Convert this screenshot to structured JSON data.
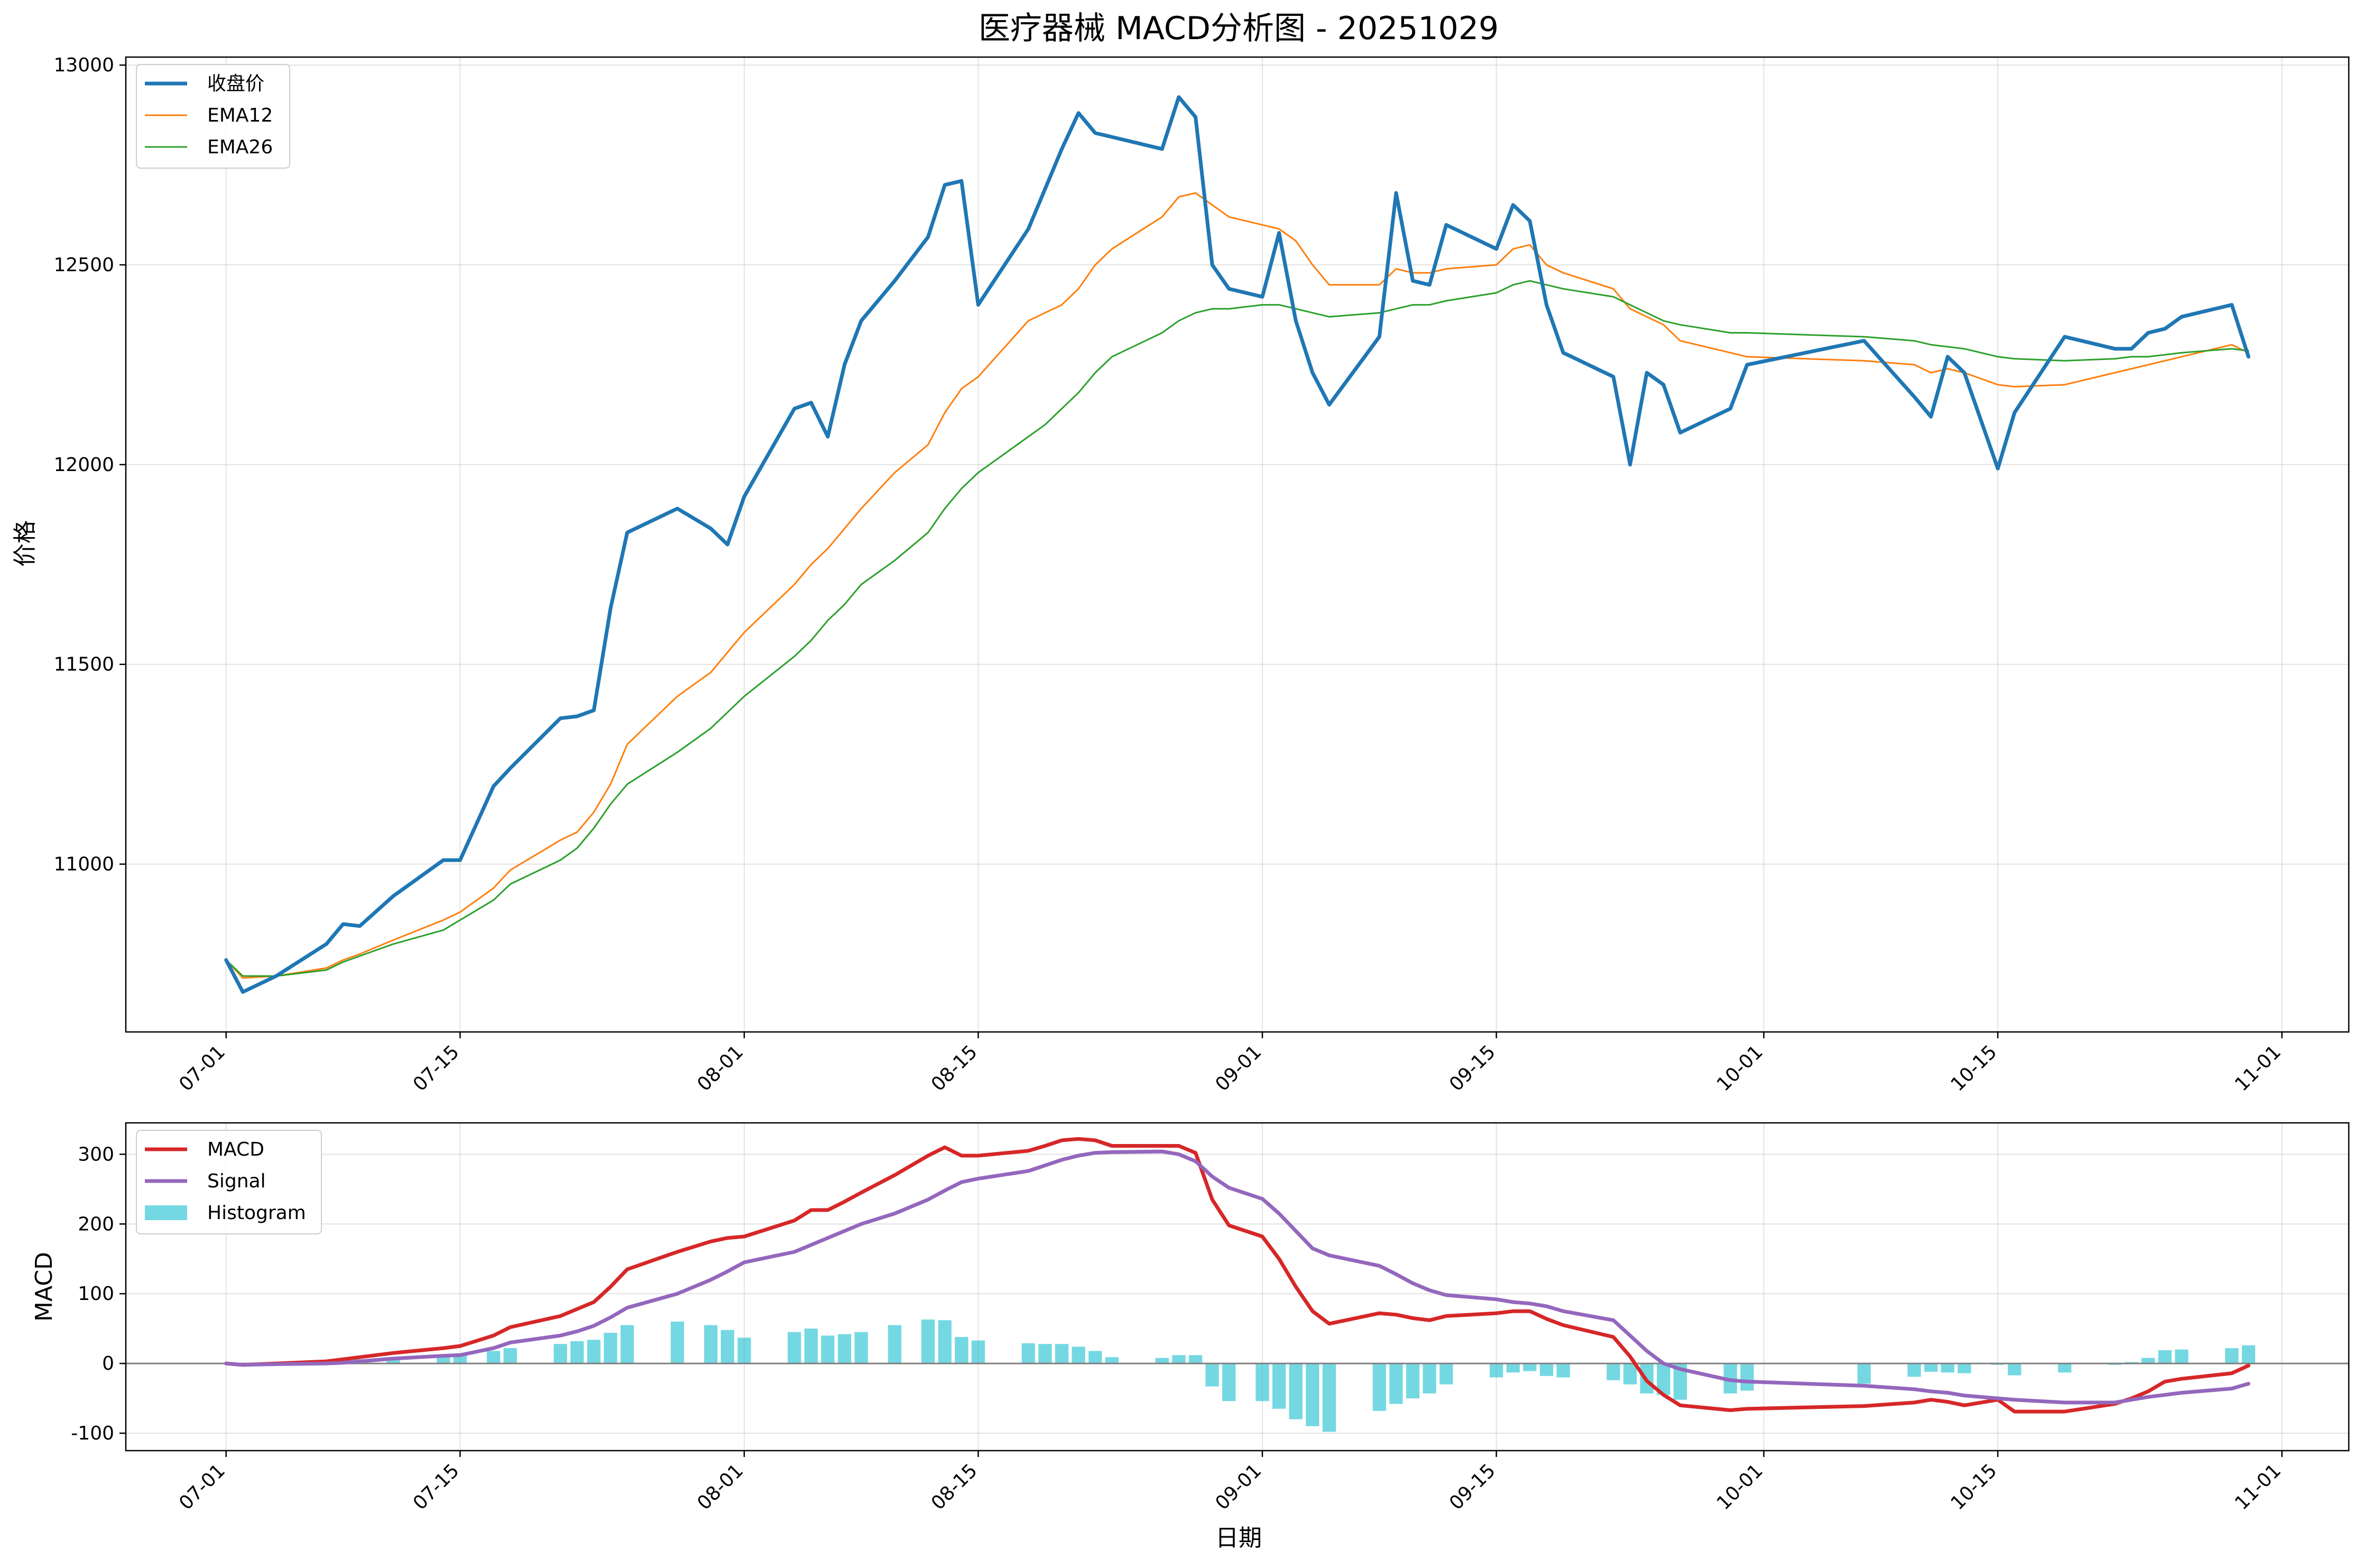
{
  "chart_data": [
    {
      "type": "line",
      "title": "医疗器械 MACD分析图 - 20251029",
      "ylabel": "价格",
      "ylim": [
        10580,
        13020
      ],
      "y_ticks": [
        11000,
        11500,
        12000,
        12500,
        13000
      ],
      "x_ticks": [
        "07-01",
        "07-15",
        "08-01",
        "08-15",
        "09-01",
        "09-15",
        "10-01",
        "10-15",
        "11-01"
      ],
      "x_tick_days": [
        0,
        14,
        31,
        45,
        62,
        76,
        92,
        106,
        123
      ],
      "xlim": [
        -6,
        127
      ],
      "grid": true,
      "legend_placement": "upper-left",
      "series": [
        {
          "name": "收盘价",
          "color": "#1f77b4",
          "x": [
            0,
            1,
            3,
            6,
            7,
            8,
            10,
            13,
            14,
            16,
            17,
            20,
            21,
            22,
            23,
            24,
            27,
            29,
            30,
            31,
            34,
            35,
            36,
            37,
            38,
            40,
            42,
            43,
            44,
            45,
            48,
            49,
            50,
            51,
            52,
            53,
            56,
            57,
            58,
            59,
            60,
            62,
            63,
            64,
            65,
            66,
            69,
            70,
            71,
            72,
            73,
            76,
            77,
            78,
            79,
            80,
            83,
            84,
            85,
            86,
            87,
            90,
            91,
            98,
            101,
            102,
            103,
            104,
            106,
            107,
            110,
            113,
            114,
            115,
            116,
            117,
            120,
            121
          ],
          "y": [
            10760,
            10680,
            10720,
            10800,
            10850,
            10845,
            10920,
            11010,
            11010,
            11195,
            11240,
            11365,
            11370,
            11385,
            11640,
            11830,
            11890,
            11840,
            11800,
            11920,
            12140,
            12155,
            12070,
            12250,
            12360,
            12460,
            12570,
            12700,
            12710,
            12400,
            12590,
            12690,
            12790,
            12880,
            12830,
            12820,
            12790,
            12920,
            12870,
            12500,
            12440,
            12420,
            12580,
            12360,
            12230,
            12150,
            12320,
            12680,
            12460,
            12450,
            12600,
            12540,
            12650,
            12610,
            12400,
            12280,
            12220,
            12000,
            12230,
            12200,
            12080,
            12140,
            12250,
            12310,
            12170,
            12120,
            12270,
            12230,
            11990,
            12130,
            12320,
            12290,
            12290,
            12330,
            12340,
            12370,
            12400,
            12270
          ]
        },
        {
          "name": "EMA12",
          "color": "#ff7f0e",
          "x": [
            0,
            1,
            3,
            6,
            7,
            8,
            10,
            13,
            14,
            16,
            17,
            20,
            21,
            22,
            23,
            24,
            27,
            29,
            30,
            31,
            34,
            35,
            36,
            37,
            38,
            40,
            42,
            43,
            44,
            45,
            48,
            49,
            50,
            51,
            52,
            53,
            56,
            57,
            58,
            59,
            60,
            62,
            63,
            64,
            65,
            66,
            69,
            70,
            71,
            72,
            73,
            76,
            77,
            78,
            79,
            80,
            83,
            84,
            85,
            86,
            87,
            90,
            91,
            98,
            101,
            102,
            103,
            104,
            106,
            107,
            110,
            113,
            114,
            115,
            116,
            117,
            120,
            121
          ],
          "y": [
            10760,
            10715,
            10720,
            10740,
            10760,
            10775,
            10810,
            10860,
            10880,
            10940,
            10985,
            11060,
            11080,
            11130,
            11200,
            11300,
            11420,
            11480,
            11530,
            11580,
            11700,
            11750,
            11790,
            11840,
            11890,
            11980,
            12050,
            12130,
            12190,
            12220,
            12360,
            12380,
            12400,
            12440,
            12500,
            12540,
            12620,
            12670,
            12680,
            12650,
            12620,
            12600,
            12590,
            12560,
            12500,
            12450,
            12450,
            12490,
            12480,
            12480,
            12490,
            12500,
            12540,
            12550,
            12500,
            12480,
            12440,
            12390,
            12370,
            12350,
            12310,
            12280,
            12270,
            12260,
            12250,
            12230,
            12240,
            12230,
            12200,
            12195,
            12200,
            12230,
            12240,
            12250,
            12260,
            12270,
            12300,
            12280
          ]
        },
        {
          "name": "EMA26",
          "color": "#2ca02c",
          "x": [
            0,
            1,
            3,
            6,
            7,
            8,
            10,
            13,
            14,
            16,
            17,
            20,
            21,
            22,
            23,
            24,
            27,
            29,
            30,
            31,
            34,
            35,
            36,
            37,
            38,
            40,
            42,
            43,
            44,
            45,
            48,
            49,
            50,
            51,
            52,
            53,
            56,
            57,
            58,
            59,
            60,
            62,
            63,
            64,
            65,
            66,
            69,
            70,
            71,
            72,
            73,
            76,
            77,
            78,
            79,
            80,
            83,
            84,
            85,
            86,
            87,
            90,
            91,
            98,
            101,
            102,
            103,
            104,
            106,
            107,
            110,
            113,
            114,
            115,
            116,
            117,
            120,
            121
          ],
          "y": [
            10760,
            10720,
            10720,
            10735,
            10755,
            10770,
            10800,
            10835,
            10860,
            10910,
            10950,
            11010,
            11040,
            11090,
            11150,
            11200,
            11280,
            11340,
            11380,
            11420,
            11520,
            11560,
            11610,
            11650,
            11700,
            11760,
            11830,
            11890,
            11940,
            11980,
            12070,
            12100,
            12140,
            12180,
            12230,
            12270,
            12330,
            12360,
            12380,
            12390,
            12390,
            12400,
            12400,
            12390,
            12380,
            12370,
            12380,
            12390,
            12400,
            12400,
            12410,
            12430,
            12450,
            12460,
            12450,
            12440,
            12420,
            12400,
            12380,
            12360,
            12350,
            12330,
            12330,
            12320,
            12310,
            12300,
            12295,
            12290,
            12270,
            12265,
            12260,
            12265,
            12270,
            12270,
            12275,
            12280,
            12290,
            12285
          ]
        }
      ]
    },
    {
      "type": "line",
      "title": "",
      "xlabel": "日期",
      "ylabel": "MACD",
      "ylim": [
        -125,
        345
      ],
      "y_ticks": [
        -100,
        0,
        100,
        200,
        300
      ],
      "x_ticks": [
        "07-01",
        "07-15",
        "08-01",
        "08-15",
        "09-01",
        "09-15",
        "10-01",
        "10-15",
        "11-01"
      ],
      "x_tick_days": [
        0,
        14,
        31,
        45,
        62,
        76,
        92,
        106,
        123
      ],
      "xlim": [
        -6,
        127
      ],
      "grid": true,
      "legend_placement": "upper-left",
      "zero_line": true,
      "series": [
        {
          "name": "MACD",
          "color": "#d62728",
          "x": [
            0,
            1,
            3,
            6,
            7,
            8,
            10,
            13,
            14,
            16,
            17,
            20,
            21,
            22,
            23,
            24,
            27,
            29,
            30,
            31,
            34,
            35,
            36,
            37,
            38,
            40,
            42,
            43,
            44,
            45,
            48,
            49,
            50,
            51,
            52,
            53,
            56,
            57,
            58,
            59,
            60,
            62,
            63,
            64,
            65,
            66,
            69,
            70,
            71,
            72,
            73,
            76,
            77,
            78,
            79,
            80,
            83,
            84,
            85,
            86,
            87,
            90,
            91,
            98,
            101,
            102,
            103,
            104,
            106,
            107,
            110,
            113,
            114,
            115,
            116,
            117,
            120,
            121
          ],
          "y": [
            0,
            -2,
            0,
            3,
            6,
            9,
            15,
            22,
            25,
            40,
            52,
            68,
            78,
            88,
            110,
            135,
            160,
            175,
            180,
            182,
            205,
            220,
            220,
            232,
            245,
            270,
            298,
            310,
            298,
            298,
            305,
            312,
            320,
            322,
            320,
            312,
            312,
            312,
            302,
            235,
            198,
            182,
            150,
            110,
            75,
            57,
            72,
            70,
            65,
            62,
            68,
            72,
            75,
            75,
            64,
            55,
            38,
            10,
            -25,
            -45,
            -60,
            -67,
            -65,
            -61,
            -56,
            -52,
            -55,
            -60,
            -52,
            -69,
            -69,
            -58,
            -50,
            -40,
            -26,
            -22,
            -14,
            -3
          ]
        },
        {
          "name": "Signal",
          "color": "#9467bd",
          "x": [
            0,
            1,
            3,
            6,
            7,
            8,
            10,
            13,
            14,
            16,
            17,
            20,
            21,
            22,
            23,
            24,
            27,
            29,
            30,
            31,
            34,
            35,
            36,
            37,
            38,
            40,
            42,
            43,
            44,
            45,
            48,
            49,
            50,
            51,
            52,
            53,
            56,
            57,
            58,
            59,
            60,
            62,
            63,
            64,
            65,
            66,
            69,
            70,
            71,
            72,
            73,
            76,
            77,
            78,
            79,
            80,
            83,
            84,
            85,
            86,
            87,
            90,
            91,
            98,
            101,
            102,
            103,
            104,
            106,
            107,
            110,
            113,
            114,
            115,
            116,
            117,
            120,
            121
          ],
          "y": [
            0,
            -2,
            -1,
            0,
            1,
            3,
            7,
            11,
            12,
            22,
            30,
            40,
            46,
            54,
            66,
            80,
            100,
            120,
            132,
            145,
            160,
            170,
            180,
            190,
            200,
            215,
            235,
            248,
            260,
            265,
            276,
            284,
            292,
            298,
            302,
            303,
            304,
            300,
            290,
            268,
            252,
            236,
            215,
            190,
            165,
            155,
            140,
            128,
            115,
            105,
            98,
            92,
            88,
            86,
            82,
            75,
            62,
            40,
            18,
            0,
            -8,
            -24,
            -26,
            -32,
            -37,
            -40,
            -42,
            -46,
            -50,
            -52,
            -56,
            -56,
            -52,
            -48,
            -45,
            -42,
            -36,
            -29
          ]
        }
      ],
      "histogram": {
        "name": "Histogram",
        "color": "#17becf",
        "x": [
          0,
          1,
          3,
          6,
          7,
          8,
          10,
          13,
          14,
          16,
          17,
          20,
          21,
          22,
          23,
          24,
          27,
          29,
          30,
          31,
          34,
          35,
          36,
          37,
          38,
          40,
          42,
          43,
          44,
          45,
          48,
          49,
          50,
          51,
          52,
          53,
          56,
          57,
          58,
          59,
          60,
          62,
          63,
          64,
          65,
          66,
          69,
          70,
          71,
          72,
          73,
          76,
          77,
          78,
          79,
          80,
          83,
          84,
          85,
          86,
          87,
          90,
          91,
          98,
          101,
          102,
          103,
          104,
          106,
          107,
          110,
          113,
          114,
          115,
          116,
          117,
          120,
          121
        ],
        "values": [
          0,
          0,
          1,
          3,
          5,
          6,
          8,
          11,
          13,
          18,
          22,
          28,
          32,
          34,
          44,
          55,
          60,
          55,
          48,
          37,
          45,
          50,
          40,
          42,
          45,
          55,
          63,
          62,
          38,
          33,
          29,
          28,
          28,
          24,
          18,
          9,
          8,
          12,
          12,
          -33,
          -54,
          -54,
          -65,
          -80,
          -90,
          -98,
          -68,
          -58,
          -50,
          -43,
          -30,
          -20,
          -13,
          -11,
          -18,
          -20,
          -24,
          -30,
          -43,
          -45,
          -52,
          -43,
          -39,
          -29,
          -19,
          -12,
          -13,
          -14,
          -2,
          -17,
          -13,
          -2,
          2,
          8,
          19,
          20,
          22,
          26
        ]
      }
    }
  ]
}
